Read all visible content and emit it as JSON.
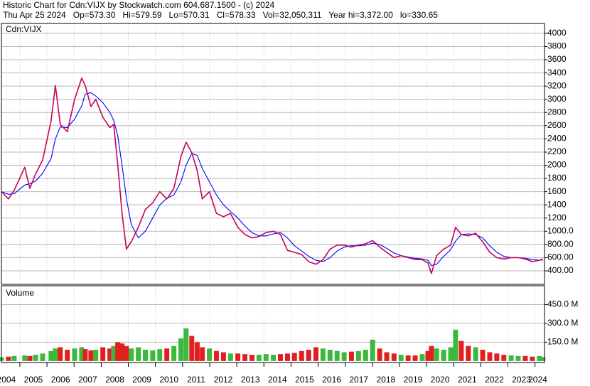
{
  "chart_data": [
    {
      "type": "line",
      "header": [
        "Historic Chart for Cdn:VIJX by Stockwatch.com 604.687.1500 - (c) 2024",
        "Thu Apr 25 2024   Op=573.30   Hi=579.59   Lo=570.31   Cl=578.33   Vol=32,050,311   Year hi=3,372.00   lo=330.65"
      ],
      "title": "Cdn:VIJX",
      "x": [
        2004.32,
        2004.58,
        2004.79,
        2005.18,
        2005.37,
        2005.58,
        2005.84,
        2006.15,
        2006.31,
        2006.49,
        2006.75,
        2007.02,
        2007.28,
        2007.41,
        2007.62,
        2007.8,
        2008.06,
        2008.32,
        2008.46,
        2008.61,
        2008.77,
        2008.93,
        2009.11,
        2009.37,
        2009.63,
        2009.9,
        2010.16,
        2010.42,
        2010.68,
        2010.94,
        2011.13,
        2011.34,
        2011.54,
        2011.73,
        2011.99,
        2012.25,
        2012.51,
        2012.77,
        2013.04,
        2013.3,
        2013.56,
        2013.82,
        2014.08,
        2014.35,
        2014.61,
        2014.87,
        2015.13,
        2015.39,
        2015.65,
        2015.92,
        2016.18,
        2016.44,
        2016.7,
        2016.96,
        2017.23,
        2017.49,
        2017.75,
        2018.01,
        2018.27,
        2018.53,
        2018.8,
        2019.06,
        2019.32,
        2019.58,
        2019.84,
        2020.05,
        2020.18,
        2020.37,
        2020.63,
        2020.89,
        2021.07,
        2021.28,
        2021.54,
        2021.81,
        2022.07,
        2022.33,
        2022.59,
        2022.85,
        2023.12,
        2023.38,
        2023.64,
        2023.9,
        2024.16,
        2024.29
      ],
      "series": [
        {
          "color": "#c8005a",
          "values": [
            1600,
            1490,
            1620,
            1970,
            1650,
            1870,
            2080,
            2670,
            3210,
            2620,
            2510,
            3000,
            3320,
            3210,
            2890,
            3000,
            2730,
            2570,
            2620,
            2020,
            1270,
            730,
            840,
            1060,
            1330,
            1430,
            1600,
            1490,
            1650,
            2130,
            2350,
            2190,
            1920,
            1490,
            1600,
            1270,
            1220,
            1270,
            1060,
            950,
            900,
            920,
            980,
            1000,
            950,
            710,
            680,
            650,
            540,
            500,
            570,
            730,
            790,
            790,
            760,
            790,
            810,
            860,
            760,
            680,
            600,
            630,
            600,
            570,
            570,
            520,
            360,
            630,
            730,
            790,
            1060,
            950,
            930,
            970,
            840,
            680,
            600,
            580,
            600,
            600,
            580,
            540,
            560,
            578.33
          ]
        },
        {
          "color": "#0000ff",
          "values": [
            1600,
            1560,
            1570,
            1700,
            1720,
            1760,
            1880,
            2100,
            2400,
            2580,
            2570,
            2700,
            2900,
            3080,
            3100,
            3050,
            2950,
            2800,
            2680,
            2450,
            2000,
            1500,
            1100,
            900,
            1000,
            1200,
            1400,
            1500,
            1550,
            1750,
            2000,
            2180,
            2150,
            1950,
            1750,
            1550,
            1400,
            1300,
            1200,
            1080,
            980,
            930,
            930,
            960,
            980,
            900,
            780,
            700,
            620,
            560,
            540,
            600,
            700,
            760,
            780,
            780,
            790,
            820,
            800,
            740,
            670,
            630,
            610,
            590,
            580,
            560,
            480,
            500,
            620,
            720,
            850,
            950,
            960,
            950,
            900,
            780,
            680,
            620,
            600,
            600,
            590,
            570,
            560,
            565
          ]
        }
      ],
      "xlim": [
        2004.32,
        2024.35
      ],
      "xgrid": [
        2005,
        2006,
        2007,
        2008,
        2009,
        2010,
        2011,
        2012,
        2013,
        2014,
        2015,
        2016,
        2017,
        2018,
        2019,
        2020,
        2021,
        2022,
        2023,
        2024
      ],
      "xticks": [
        {
          "value": 2004.5,
          "label": "2004"
        },
        {
          "value": 2005.5,
          "label": "2005"
        },
        {
          "value": 2006.5,
          "label": "2006"
        },
        {
          "value": 2007.5,
          "label": "2007"
        },
        {
          "value": 2008.5,
          "label": "2008"
        },
        {
          "value": 2009.5,
          "label": "2009"
        },
        {
          "value": 2010.5,
          "label": "2010"
        },
        {
          "value": 2011.5,
          "label": "2011"
        },
        {
          "value": 2012.5,
          "label": "2012"
        },
        {
          "value": 2013.5,
          "label": "2013"
        },
        {
          "value": 2014.5,
          "label": "2014"
        },
        {
          "value": 2015.5,
          "label": "2015"
        },
        {
          "value": 2016.5,
          "label": "2016"
        },
        {
          "value": 2017.5,
          "label": "2017"
        },
        {
          "value": 2018.5,
          "label": "2018"
        },
        {
          "value": 2019.5,
          "label": "2019"
        },
        {
          "value": 2020.5,
          "label": "2020"
        },
        {
          "value": 2021.5,
          "label": "2021"
        },
        {
          "value": 2022.5,
          "label": "2022"
        },
        {
          "value": 2023.5,
          "label": "2023"
        },
        {
          "value": 2024.1,
          "label": "2024"
        }
      ],
      "ylim": [
        195,
        4150
      ],
      "yticks": [
        4000,
        3800,
        3600,
        3400,
        3200,
        3000,
        2800,
        2600,
        2400,
        2200,
        2000,
        1800,
        1600,
        1400,
        1200,
        {
          "value": 1000,
          "label": "1000.0"
        },
        {
          "value": 800,
          "label": "800.00"
        },
        {
          "value": 600,
          "label": "600.00"
        },
        {
          "value": 400,
          "label": "400.00"
        }
      ],
      "grid": true
    },
    {
      "type": "bar",
      "title": "Volume",
      "up_color": "#3cb83c",
      "down_color": "#e02020",
      "values": [
        30,
        35,
        40,
        45,
        40,
        50,
        60,
        80,
        100,
        110,
        90,
        100,
        110,
        95,
        85,
        90,
        110,
        100,
        120,
        150,
        140,
        120,
        100,
        110,
        90,
        85,
        95,
        100,
        120,
        180,
        260,
        200,
        150,
        110,
        100,
        80,
        70,
        60,
        60,
        55,
        50,
        50,
        55,
        50,
        55,
        60,
        65,
        80,
        90,
        110,
        100,
        90,
        80,
        70,
        75,
        80,
        90,
        170,
        100,
        70,
        60,
        50,
        45,
        45,
        55,
        80,
        120,
        100,
        90,
        110,
        250,
        160,
        120,
        110,
        90,
        70,
        60,
        50,
        45,
        40,
        40,
        35,
        40,
        32.05
      ],
      "ylim": [
        -12,
        600
      ],
      "yticks": [
        {
          "value": 450,
          "label": "450.0 M"
        },
        {
          "value": 300,
          "label": "300.0 M"
        },
        {
          "value": 150,
          "label": "150.0 M"
        }
      ],
      "grid": true
    }
  ]
}
